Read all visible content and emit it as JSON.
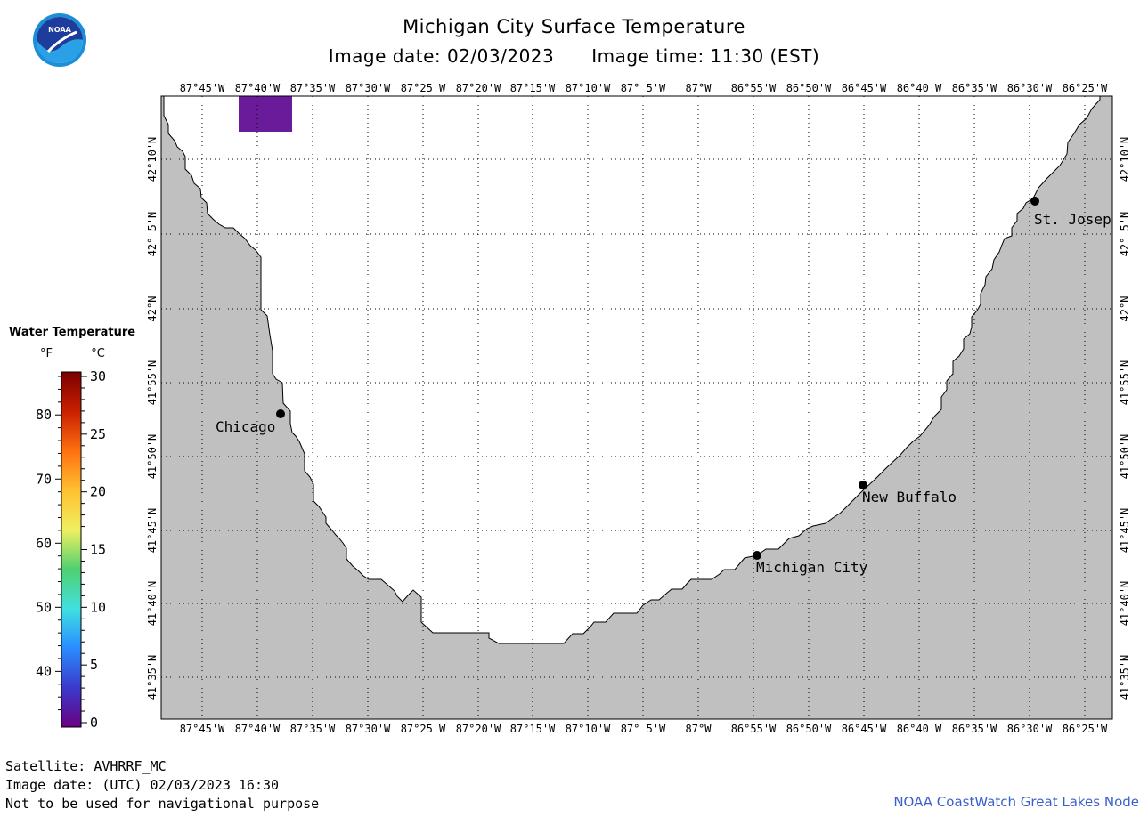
{
  "header": {
    "title": "Michigan City Surface Temperature",
    "image_date": "Image date: 02/03/2023",
    "image_time": "Image time: 11:30 (EST)"
  },
  "logo": {
    "text": "NOAA",
    "icon": "noaa-logo-icon"
  },
  "map": {
    "lon_labels": [
      "87°45'W",
      "87°40'W",
      "87°35'W",
      "87°30'W",
      "87°25'W",
      "87°20'W",
      "87°15'W",
      "87°10'W",
      "87° 5'W",
      "87°W",
      "86°55'W",
      "86°50'W",
      "86°45'W",
      "86°40'W",
      "86°35'W",
      "86°30'W",
      "86°25'W"
    ],
    "lat_labels": [
      "42°10'N",
      "42° 5'N",
      "42°N",
      "41°55'N",
      "41°50'N",
      "41°45'N",
      "41°40'N",
      "41°35'N"
    ],
    "cities": [
      {
        "name": "Chicago"
      },
      {
        "name": "St. Josep"
      },
      {
        "name": "New Buffalo"
      },
      {
        "name": "Michigan City"
      }
    ],
    "colors": {
      "land": "#c0c0c0",
      "water": "#ffffff",
      "grid": "#000000",
      "cold_patch": "#6a1b9a"
    }
  },
  "legend": {
    "title": "Water Temperature",
    "unit_f": "°F",
    "unit_c": "°C",
    "f_labels": [
      "80",
      "70",
      "60",
      "50",
      "40"
    ],
    "c_labels": [
      "30",
      "25",
      "20",
      "15",
      "10",
      "5",
      "0"
    ],
    "range_c": [
      0,
      30
    ],
    "gradient": [
      "#6a0080",
      "#3a3acc",
      "#2a8cff",
      "#40e0e0",
      "#50d070",
      "#f0f060",
      "#ffc030",
      "#ff7010",
      "#c82000",
      "#7a0000"
    ]
  },
  "footer": {
    "satellite": "Satellite: AVHRRF_MC",
    "utc_date": "Image date: (UTC) 02/03/2023  16:30",
    "disclaimer": "Not to be used for navigational purpose",
    "credit": "NOAA CoastWatch Great Lakes Node"
  }
}
